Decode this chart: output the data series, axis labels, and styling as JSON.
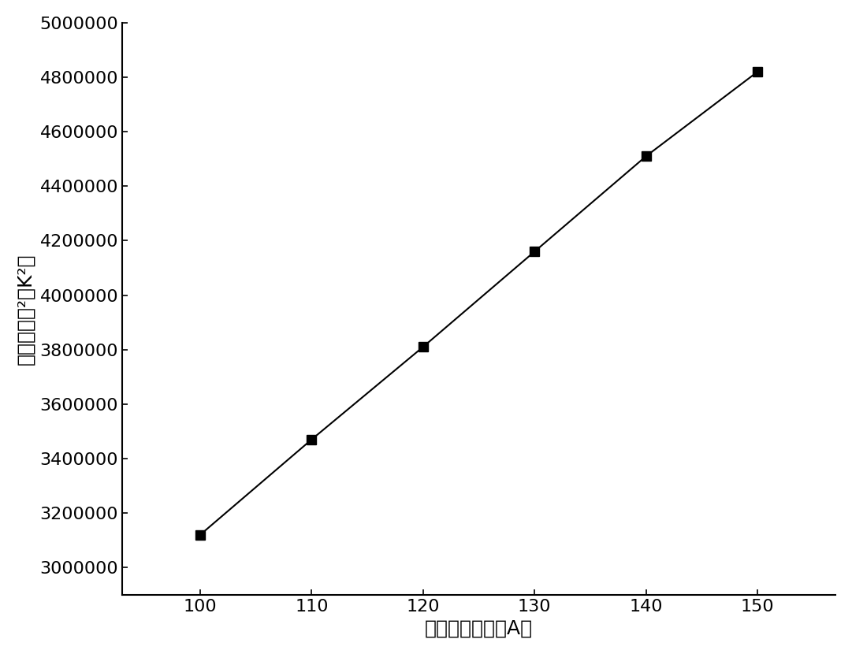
{
  "x": [
    100,
    110,
    120,
    130,
    140,
    150
  ],
  "y": [
    3120000,
    3470000,
    3810000,
    4160000,
    4510000,
    4820000
  ],
  "xlabel": "电源输出电流（A）",
  "ylabel": "热力学温度²（K²）",
  "xlim": [
    93,
    157
  ],
  "ylim": [
    2900000,
    5000000
  ],
  "xticks": [
    100,
    110,
    120,
    130,
    140,
    150
  ],
  "yticks": [
    3000000,
    3200000,
    3400000,
    3600000,
    3800000,
    4000000,
    4200000,
    4400000,
    4600000,
    4800000,
    5000000
  ],
  "line_color": "#000000",
  "marker": "s",
  "marker_size": 8,
  "marker_color": "#000000",
  "line_width": 1.5,
  "background_color": "#ffffff",
  "xlabel_fontsize": 18,
  "ylabel_fontsize": 18,
  "tick_fontsize": 16
}
